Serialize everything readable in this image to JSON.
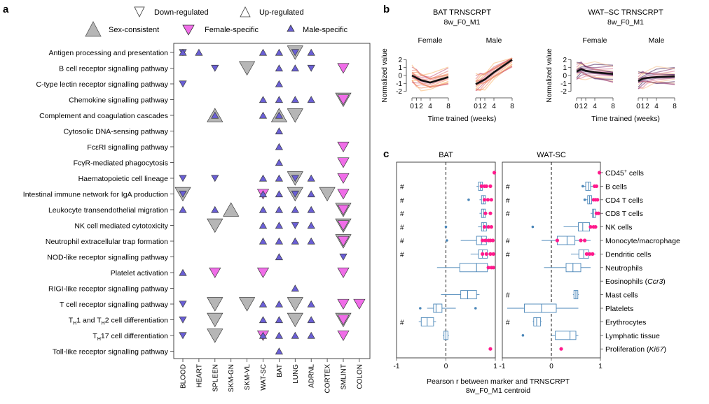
{
  "panel_labels": {
    "a": "a",
    "b": "b",
    "c": "c"
  },
  "colors": {
    "sex_consistent": "#b6b6b6",
    "female_specific": "#f06de8",
    "male_specific": "#6a5fd6",
    "female_points": "#ff1a8c",
    "box": "#4a86b8",
    "line_mean": "#111111"
  },
  "panel_a": {
    "legend": {
      "down": "Down-regulated",
      "up": "Up-regulated",
      "sex_consistent": "Sex-consistent",
      "female_specific": "Female-specific",
      "male_specific": "Male-specific"
    },
    "pathways": [
      "Antigen processing and presentation",
      "B cell receptor signalling pathway",
      "C-type lectin receptor signalling pathway",
      "Chemokine signalling pathway",
      "Complement and coagulation cascades",
      "Cytosolic DNA-sensing pathway",
      "FcεRI signalling pathway",
      "FcγR-mediated phagocytosis",
      "Haematopoietic cell lineage",
      "Intestinal immune network for IgA production",
      "Leukocyte transendothelial migration",
      "NK cell mediated cytotoxicity",
      "Neutrophil extracellular trap formation",
      "NOD-like receptor signalling pathway",
      "Platelet activation",
      "RIGI-like receptor signalling pathway",
      "T cell receptor signalling pathway",
      "TH1 and TH2 cell differentiation",
      "TH17 cell differentiation",
      "Toll-like receptor signalling pathway"
    ],
    "tissues": [
      "BLOOD",
      "HEART",
      "SPLEEN",
      "SKM-GN",
      "SKM-VL",
      "WAT-SC",
      "BAT",
      "LUNG",
      "ADRNL",
      "CORTEX",
      "SMLINT",
      "COLON"
    ],
    "marks": [
      {
        "row": 0,
        "col": 0,
        "dir": "down",
        "type": "male"
      },
      {
        "row": 0,
        "col": 0,
        "dir": "up",
        "type": "male"
      },
      {
        "row": 0,
        "col": 1,
        "dir": "up",
        "type": "male"
      },
      {
        "row": 0,
        "col": 5,
        "dir": "up",
        "type": "male"
      },
      {
        "row": 0,
        "col": 6,
        "dir": "up",
        "type": "male"
      },
      {
        "row": 0,
        "col": 7,
        "dir": "down",
        "type": "consistent"
      },
      {
        "row": 0,
        "col": 7,
        "dir": "down",
        "type": "male"
      },
      {
        "row": 0,
        "col": 8,
        "dir": "up",
        "type": "male"
      },
      {
        "row": 1,
        "col": 2,
        "dir": "down",
        "type": "male"
      },
      {
        "row": 1,
        "col": 4,
        "dir": "down",
        "type": "consistent"
      },
      {
        "row": 1,
        "col": 6,
        "dir": "up",
        "type": "male"
      },
      {
        "row": 1,
        "col": 7,
        "dir": "up",
        "type": "male"
      },
      {
        "row": 1,
        "col": 8,
        "dir": "down",
        "type": "male"
      },
      {
        "row": 1,
        "col": 10,
        "dir": "down",
        "type": "female"
      },
      {
        "row": 2,
        "col": 0,
        "dir": "down",
        "type": "male"
      },
      {
        "row": 2,
        "col": 6,
        "dir": "up",
        "type": "male"
      },
      {
        "row": 3,
        "col": 5,
        "dir": "up",
        "type": "male"
      },
      {
        "row": 3,
        "col": 6,
        "dir": "up",
        "type": "male"
      },
      {
        "row": 3,
        "col": 7,
        "dir": "up",
        "type": "male"
      },
      {
        "row": 3,
        "col": 8,
        "dir": "up",
        "type": "male"
      },
      {
        "row": 3,
        "col": 10,
        "dir": "down",
        "type": "consistent"
      },
      {
        "row": 3,
        "col": 10,
        "dir": "down",
        "type": "female"
      },
      {
        "row": 4,
        "col": 2,
        "dir": "up",
        "type": "consistent"
      },
      {
        "row": 4,
        "col": 2,
        "dir": "up",
        "type": "male"
      },
      {
        "row": 4,
        "col": 5,
        "dir": "up",
        "type": "male"
      },
      {
        "row": 4,
        "col": 6,
        "dir": "up",
        "type": "consistent"
      },
      {
        "row": 4,
        "col": 6,
        "dir": "up",
        "type": "male"
      },
      {
        "row": 4,
        "col": 7,
        "dir": "down",
        "type": "consistent"
      },
      {
        "row": 5,
        "col": 6,
        "dir": "up",
        "type": "male"
      },
      {
        "row": 6,
        "col": 6,
        "dir": "up",
        "type": "male"
      },
      {
        "row": 6,
        "col": 10,
        "dir": "down",
        "type": "female"
      },
      {
        "row": 7,
        "col": 6,
        "dir": "up",
        "type": "male"
      },
      {
        "row": 7,
        "col": 10,
        "dir": "down",
        "type": "female"
      },
      {
        "row": 8,
        "col": 0,
        "dir": "down",
        "type": "male"
      },
      {
        "row": 8,
        "col": 2,
        "dir": "down",
        "type": "male"
      },
      {
        "row": 8,
        "col": 5,
        "dir": "up",
        "type": "male"
      },
      {
        "row": 8,
        "col": 6,
        "dir": "up",
        "type": "male"
      },
      {
        "row": 8,
        "col": 7,
        "dir": "down",
        "type": "consistent"
      },
      {
        "row": 8,
        "col": 7,
        "dir": "down",
        "type": "male"
      },
      {
        "row": 8,
        "col": 8,
        "dir": "up",
        "type": "male"
      },
      {
        "row": 8,
        "col": 10,
        "dir": "down",
        "type": "female"
      },
      {
        "row": 9,
        "col": 0,
        "dir": "down",
        "type": "consistent"
      },
      {
        "row": 9,
        "col": 0,
        "dir": "down",
        "type": "male"
      },
      {
        "row": 9,
        "col": 5,
        "dir": "down",
        "type": "female"
      },
      {
        "row": 9,
        "col": 5,
        "dir": "up",
        "type": "male"
      },
      {
        "row": 9,
        "col": 6,
        "dir": "up",
        "type": "male"
      },
      {
        "row": 9,
        "col": 7,
        "dir": "down",
        "type": "consistent"
      },
      {
        "row": 9,
        "col": 7,
        "dir": "down",
        "type": "male"
      },
      {
        "row": 9,
        "col": 8,
        "dir": "up",
        "type": "male"
      },
      {
        "row": 9,
        "col": 9,
        "dir": "down",
        "type": "consistent"
      },
      {
        "row": 9,
        "col": 10,
        "dir": "down",
        "type": "female"
      },
      {
        "row": 10,
        "col": 0,
        "dir": "up",
        "type": "male"
      },
      {
        "row": 10,
        "col": 2,
        "dir": "up",
        "type": "male"
      },
      {
        "row": 10,
        "col": 3,
        "dir": "up",
        "type": "consistent"
      },
      {
        "row": 10,
        "col": 5,
        "dir": "up",
        "type": "male"
      },
      {
        "row": 10,
        "col": 6,
        "dir": "up",
        "type": "male"
      },
      {
        "row": 10,
        "col": 7,
        "dir": "up",
        "type": "male"
      },
      {
        "row": 10,
        "col": 8,
        "dir": "up",
        "type": "male"
      },
      {
        "row": 10,
        "col": 10,
        "dir": "down",
        "type": "consistent"
      },
      {
        "row": 10,
        "col": 10,
        "dir": "down",
        "type": "female"
      },
      {
        "row": 11,
        "col": 2,
        "dir": "down",
        "type": "consistent"
      },
      {
        "row": 11,
        "col": 5,
        "dir": "up",
        "type": "male"
      },
      {
        "row": 11,
        "col": 6,
        "dir": "up",
        "type": "male"
      },
      {
        "row": 11,
        "col": 7,
        "dir": "down",
        "type": "male"
      },
      {
        "row": 11,
        "col": 8,
        "dir": "up",
        "type": "male"
      },
      {
        "row": 11,
        "col": 10,
        "dir": "down",
        "type": "consistent"
      },
      {
        "row": 11,
        "col": 10,
        "dir": "down",
        "type": "female"
      },
      {
        "row": 12,
        "col": 5,
        "dir": "up",
        "type": "male"
      },
      {
        "row": 12,
        "col": 6,
        "dir": "up",
        "type": "male"
      },
      {
        "row": 12,
        "col": 7,
        "dir": "up",
        "type": "male"
      },
      {
        "row": 12,
        "col": 8,
        "dir": "up",
        "type": "male"
      },
      {
        "row": 12,
        "col": 10,
        "dir": "down",
        "type": "consistent"
      },
      {
        "row": 12,
        "col": 10,
        "dir": "down",
        "type": "female"
      },
      {
        "row": 13,
        "col": 6,
        "dir": "up",
        "type": "male"
      },
      {
        "row": 13,
        "col": 10,
        "dir": "down",
        "type": "male"
      },
      {
        "row": 14,
        "col": 0,
        "dir": "up",
        "type": "male"
      },
      {
        "row": 14,
        "col": 2,
        "dir": "down",
        "type": "female"
      },
      {
        "row": 14,
        "col": 5,
        "dir": "down",
        "type": "female"
      },
      {
        "row": 14,
        "col": 10,
        "dir": "down",
        "type": "female"
      },
      {
        "row": 15,
        "col": 7,
        "dir": "up",
        "type": "male"
      },
      {
        "row": 16,
        "col": 0,
        "dir": "down",
        "type": "male"
      },
      {
        "row": 16,
        "col": 2,
        "dir": "down",
        "type": "consistent"
      },
      {
        "row": 16,
        "col": 4,
        "dir": "down",
        "type": "consistent"
      },
      {
        "row": 16,
        "col": 5,
        "dir": "up",
        "type": "male"
      },
      {
        "row": 16,
        "col": 6,
        "dir": "up",
        "type": "male"
      },
      {
        "row": 16,
        "col": 7,
        "dir": "down",
        "type": "consistent"
      },
      {
        "row": 16,
        "col": 8,
        "dir": "up",
        "type": "male"
      },
      {
        "row": 16,
        "col": 10,
        "dir": "down",
        "type": "female"
      },
      {
        "row": 16,
        "col": 11,
        "dir": "down",
        "type": "female"
      },
      {
        "row": 17,
        "col": 0,
        "dir": "down",
        "type": "male"
      },
      {
        "row": 17,
        "col": 2,
        "dir": "down",
        "type": "consistent"
      },
      {
        "row": 17,
        "col": 5,
        "dir": "up",
        "type": "male"
      },
      {
        "row": 17,
        "col": 6,
        "dir": "up",
        "type": "male"
      },
      {
        "row": 17,
        "col": 7,
        "dir": "down",
        "type": "consistent"
      },
      {
        "row": 17,
        "col": 8,
        "dir": "up",
        "type": "male"
      },
      {
        "row": 17,
        "col": 10,
        "dir": "down",
        "type": "consistent"
      },
      {
        "row": 17,
        "col": 10,
        "dir": "down",
        "type": "female"
      },
      {
        "row": 18,
        "col": 0,
        "dir": "down",
        "type": "male"
      },
      {
        "row": 18,
        "col": 2,
        "dir": "down",
        "type": "consistent"
      },
      {
        "row": 18,
        "col": 5,
        "dir": "down",
        "type": "female"
      },
      {
        "row": 18,
        "col": 5,
        "dir": "up",
        "type": "male"
      },
      {
        "row": 18,
        "col": 6,
        "dir": "up",
        "type": "male"
      },
      {
        "row": 18,
        "col": 7,
        "dir": "up",
        "type": "male"
      },
      {
        "row": 18,
        "col": 8,
        "dir": "up",
        "type": "male"
      },
      {
        "row": 18,
        "col": 10,
        "dir": "down",
        "type": "female"
      },
      {
        "row": 19,
        "col": 6,
        "dir": "up",
        "type": "male"
      }
    ]
  },
  "panel_b": {
    "weeks": [
      0,
      1,
      2,
      4,
      8
    ],
    "xticks": [
      "0",
      "1",
      "2",
      "4",
      "8"
    ],
    "yticks": [
      "-2",
      "-1",
      "0",
      "1",
      "2"
    ],
    "ylabel": "Normalized value",
    "xlabel": "Time trained (weeks)",
    "facets": [
      "Female",
      "Male"
    ],
    "plots": [
      {
        "title": "BAT TRNSCRPT",
        "subtitle": "8w_F0_M1",
        "female_mean": [
          0,
          -0.3,
          -0.6,
          -0.9,
          -0.2
        ],
        "male_mean": [
          -1.1,
          -0.8,
          -0.5,
          0.4,
          2.0
        ]
      },
      {
        "title": "WAT–SC TRNSCRPT",
        "subtitle": "8w_F0_M1",
        "female_mean": [
          0.5,
          0.8,
          0.6,
          0.4,
          0.2
        ],
        "male_mean": [
          -0.7,
          -0.4,
          -0.3,
          -0.2,
          -0.1
        ]
      }
    ]
  },
  "panel_c": {
    "facets": [
      "BAT",
      "WAT-SC"
    ],
    "xlabel": "Pearson r between marker and TRNSCRPT",
    "xlabel2": "8w_F0_M1 centroid",
    "xticks": [
      "-1",
      "0",
      "1"
    ],
    "xlim": [
      -1,
      1
    ],
    "cells": [
      {
        "label": "CD45",
        "sup": "+",
        "suffix": " cells"
      },
      {
        "label": "B cells"
      },
      {
        "label": "CD4 T cells"
      },
      {
        "label": "CD8 T cells"
      },
      {
        "label": "NK cells"
      },
      {
        "label": "Monocyte/macrophage"
      },
      {
        "label": "Dendritic cells"
      },
      {
        "label": "Neutrophils"
      },
      {
        "label": "Eosinophils (",
        "ital": "Ccr3",
        "suffix": ")"
      },
      {
        "label": "Mast cells"
      },
      {
        "label": "Platelets"
      },
      {
        "label": "Erythrocytes"
      },
      {
        "label": "Lymphatic tissue"
      },
      {
        "label": "Proliferation (",
        "ital": "Ki67",
        "suffix": ")"
      }
    ],
    "hash_symbol": "#",
    "hash": {
      "BAT": [
        1,
        2,
        3,
        4,
        5,
        6,
        11
      ],
      "WAT-SC": [
        1,
        2,
        3,
        5,
        6,
        9,
        11
      ]
    },
    "boxes": {
      "BAT": [
        null,
        {
          "q1": 0.66,
          "med": 0.7,
          "q3": 0.74,
          "lo": 0.62,
          "hi": 0.78
        },
        {
          "q1": 0.72,
          "med": 0.76,
          "q3": 0.8,
          "lo": 0.68,
          "hi": 0.84
        },
        {
          "q1": 0.72,
          "med": 0.76,
          "q3": 0.8,
          "lo": 0.68,
          "hi": 0.84
        },
        {
          "q1": 0.72,
          "med": 0.76,
          "q3": 0.82,
          "lo": 0.65,
          "hi": 0.88
        },
        {
          "q1": 0.62,
          "med": 0.72,
          "q3": 0.82,
          "lo": 0.3,
          "hi": 0.95
        },
        {
          "q1": 0.66,
          "med": 0.74,
          "q3": 0.84,
          "lo": 0.5,
          "hi": 0.95
        },
        {
          "q1": 0.28,
          "med": 0.62,
          "q3": 0.84,
          "lo": -0.18,
          "hi": 0.98
        },
        null,
        {
          "q1": 0.3,
          "med": 0.44,
          "q3": 0.62,
          "lo": -0.1,
          "hi": 0.68
        },
        {
          "q1": -0.25,
          "med": -0.2,
          "q3": -0.08,
          "lo": -0.38,
          "hi": 0.2
        },
        {
          "q1": -0.5,
          "med": -0.38,
          "q3": -0.25,
          "lo": -0.55,
          "hi": -0.2
        },
        {
          "q1": -0.04,
          "med": 0.0,
          "q3": 0.04,
          "lo": -0.06,
          "hi": 0.06
        },
        null
      ],
      "WAT-SC": [
        null,
        {
          "q1": 0.7,
          "med": 0.76,
          "q3": 0.8,
          "lo": 0.62,
          "hi": 0.86
        },
        {
          "q1": 0.74,
          "med": 0.78,
          "q3": 0.82,
          "lo": 0.7,
          "hi": 0.86
        },
        {
          "q1": 0.84,
          "med": 0.86,
          "q3": 0.9,
          "lo": 0.8,
          "hi": 0.92
        },
        {
          "q1": 0.55,
          "med": 0.64,
          "q3": 0.78,
          "lo": 0.25,
          "hi": 0.88
        },
        {
          "q1": 0.12,
          "med": 0.32,
          "q3": 0.48,
          "lo": -0.2,
          "hi": 0.8
        },
        {
          "q1": 0.56,
          "med": 0.66,
          "q3": 0.76,
          "lo": 0.4,
          "hi": 0.9
        },
        {
          "q1": 0.3,
          "med": 0.44,
          "q3": 0.6,
          "lo": -0.15,
          "hi": 0.8
        },
        null,
        {
          "q1": 0.46,
          "med": 0.5,
          "q3": 0.54,
          "lo": 0.44,
          "hi": 0.56
        },
        {
          "q1": -0.55,
          "med": -0.2,
          "q3": 0.1,
          "lo": -0.9,
          "hi": 0.55
        },
        {
          "q1": -0.36,
          "med": -0.3,
          "q3": -0.22,
          "lo": -0.38,
          "hi": -0.2
        },
        {
          "q1": 0.08,
          "med": 0.38,
          "q3": 0.5,
          "lo": 0.0,
          "hi": 0.55
        },
        null
      ]
    },
    "female_points": {
      "BAT": [
        [
          0.98
        ],
        [
          0.72,
          0.78,
          0.82,
          0.9
        ],
        [
          0.78,
          0.85,
          0.92
        ],
        [
          0.8,
          0.9
        ],
        [
          0.78,
          0.86,
          0.92
        ],
        [
          0.74,
          0.8,
          0.86,
          0.9,
          0.95
        ],
        [
          0.74,
          0.82,
          0.9,
          0.96
        ],
        [
          0.86,
          0.92,
          0.96
        ],
        [],
        [],
        [],
        [],
        [],
        [
          0.9
        ]
      ],
      "WAT-SC": [
        [
          0.98
        ],
        [
          0.88,
          0.92
        ],
        [
          0.86,
          0.9,
          0.94
        ],
        [
          0.92,
          0.96
        ],
        [
          0.8,
          0.86,
          0.9
        ],
        [
          0.12,
          0.6,
          0.68
        ],
        [
          0.72,
          0.78,
          0.84
        ],
        [],
        [],
        [],
        [],
        [],
        [],
        [
          0.2
        ]
      ]
    },
    "male_points": {
      "BAT": [
        [],
        [],
        [
          0.46
        ],
        [],
        [
          0.0
        ],
        [
          0.02
        ],
        [],
        [],
        [],
        [],
        [
          -0.52,
          0.6
        ],
        [],
        [],
        []
      ],
      "WAT-SC": [
        [],
        [
          0.64
        ],
        [
          0.68
        ],
        [],
        [
          -0.38
        ],
        [],
        [],
        [],
        [],
        [],
        [],
        [],
        [
          -0.58
        ],
        []
      ]
    }
  }
}
